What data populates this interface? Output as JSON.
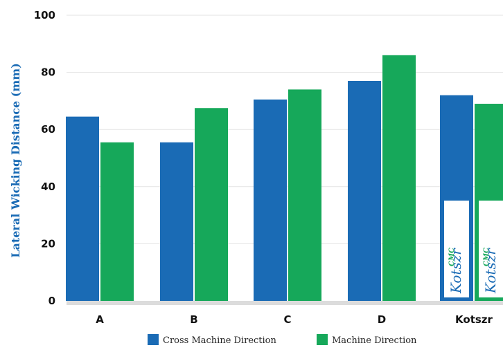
{
  "chart_data": {
    "type": "bar",
    "title": "",
    "xlabel": "",
    "ylabel": "Lateral Wicking Distance (mm)",
    "categories": [
      "A",
      "B",
      "C",
      "D",
      "Kotszr"
    ],
    "series": [
      {
        "name": "Cross Machine Direction",
        "values": [
          64.5,
          55.5,
          70.5,
          77,
          72
        ],
        "color": "#1a6bb5"
      },
      {
        "name": "Machine Direction",
        "values": [
          55.5,
          67.5,
          74,
          86,
          69
        ],
        "color": "#16a85a"
      }
    ],
    "ylim": [
      0,
      100
    ],
    "yticks": [
      0,
      20,
      40,
      60,
      80,
      100
    ],
    "grid": true,
    "legend_position": "bottom-center",
    "logo_badge": {
      "text": "Kotszr",
      "suffix": "CMC",
      "colors": {
        "brand": "#1a6bb5",
        "accent": "#16a85a"
      }
    }
  }
}
